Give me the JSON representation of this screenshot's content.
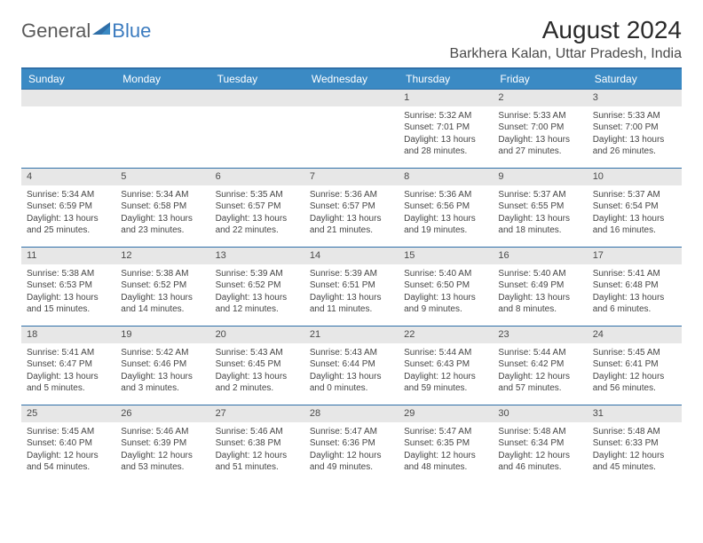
{
  "logo": {
    "text_grey": "General",
    "text_blue": "Blue"
  },
  "header": {
    "month_title": "August 2024",
    "location": "Barkhera Kalan, Uttar Pradesh, India"
  },
  "colors": {
    "header_bar": "#3b8ac4",
    "rule": "#2f6fa8",
    "daynum_bg": "#e7e7e7",
    "logo_blue": "#3b7bbf"
  },
  "day_names": [
    "Sunday",
    "Monday",
    "Tuesday",
    "Wednesday",
    "Thursday",
    "Friday",
    "Saturday"
  ],
  "weeks": [
    [
      {
        "n": "",
        "sr": "",
        "ss": "",
        "dl": ""
      },
      {
        "n": "",
        "sr": "",
        "ss": "",
        "dl": ""
      },
      {
        "n": "",
        "sr": "",
        "ss": "",
        "dl": ""
      },
      {
        "n": "",
        "sr": "",
        "ss": "",
        "dl": ""
      },
      {
        "n": "1",
        "sr": "Sunrise: 5:32 AM",
        "ss": "Sunset: 7:01 PM",
        "dl": "Daylight: 13 hours and 28 minutes."
      },
      {
        "n": "2",
        "sr": "Sunrise: 5:33 AM",
        "ss": "Sunset: 7:00 PM",
        "dl": "Daylight: 13 hours and 27 minutes."
      },
      {
        "n": "3",
        "sr": "Sunrise: 5:33 AM",
        "ss": "Sunset: 7:00 PM",
        "dl": "Daylight: 13 hours and 26 minutes."
      }
    ],
    [
      {
        "n": "4",
        "sr": "Sunrise: 5:34 AM",
        "ss": "Sunset: 6:59 PM",
        "dl": "Daylight: 13 hours and 25 minutes."
      },
      {
        "n": "5",
        "sr": "Sunrise: 5:34 AM",
        "ss": "Sunset: 6:58 PM",
        "dl": "Daylight: 13 hours and 23 minutes."
      },
      {
        "n": "6",
        "sr": "Sunrise: 5:35 AM",
        "ss": "Sunset: 6:57 PM",
        "dl": "Daylight: 13 hours and 22 minutes."
      },
      {
        "n": "7",
        "sr": "Sunrise: 5:36 AM",
        "ss": "Sunset: 6:57 PM",
        "dl": "Daylight: 13 hours and 21 minutes."
      },
      {
        "n": "8",
        "sr": "Sunrise: 5:36 AM",
        "ss": "Sunset: 6:56 PM",
        "dl": "Daylight: 13 hours and 19 minutes."
      },
      {
        "n": "9",
        "sr": "Sunrise: 5:37 AM",
        "ss": "Sunset: 6:55 PM",
        "dl": "Daylight: 13 hours and 18 minutes."
      },
      {
        "n": "10",
        "sr": "Sunrise: 5:37 AM",
        "ss": "Sunset: 6:54 PM",
        "dl": "Daylight: 13 hours and 16 minutes."
      }
    ],
    [
      {
        "n": "11",
        "sr": "Sunrise: 5:38 AM",
        "ss": "Sunset: 6:53 PM",
        "dl": "Daylight: 13 hours and 15 minutes."
      },
      {
        "n": "12",
        "sr": "Sunrise: 5:38 AM",
        "ss": "Sunset: 6:52 PM",
        "dl": "Daylight: 13 hours and 14 minutes."
      },
      {
        "n": "13",
        "sr": "Sunrise: 5:39 AM",
        "ss": "Sunset: 6:52 PM",
        "dl": "Daylight: 13 hours and 12 minutes."
      },
      {
        "n": "14",
        "sr": "Sunrise: 5:39 AM",
        "ss": "Sunset: 6:51 PM",
        "dl": "Daylight: 13 hours and 11 minutes."
      },
      {
        "n": "15",
        "sr": "Sunrise: 5:40 AM",
        "ss": "Sunset: 6:50 PM",
        "dl": "Daylight: 13 hours and 9 minutes."
      },
      {
        "n": "16",
        "sr": "Sunrise: 5:40 AM",
        "ss": "Sunset: 6:49 PM",
        "dl": "Daylight: 13 hours and 8 minutes."
      },
      {
        "n": "17",
        "sr": "Sunrise: 5:41 AM",
        "ss": "Sunset: 6:48 PM",
        "dl": "Daylight: 13 hours and 6 minutes."
      }
    ],
    [
      {
        "n": "18",
        "sr": "Sunrise: 5:41 AM",
        "ss": "Sunset: 6:47 PM",
        "dl": "Daylight: 13 hours and 5 minutes."
      },
      {
        "n": "19",
        "sr": "Sunrise: 5:42 AM",
        "ss": "Sunset: 6:46 PM",
        "dl": "Daylight: 13 hours and 3 minutes."
      },
      {
        "n": "20",
        "sr": "Sunrise: 5:43 AM",
        "ss": "Sunset: 6:45 PM",
        "dl": "Daylight: 13 hours and 2 minutes."
      },
      {
        "n": "21",
        "sr": "Sunrise: 5:43 AM",
        "ss": "Sunset: 6:44 PM",
        "dl": "Daylight: 13 hours and 0 minutes."
      },
      {
        "n": "22",
        "sr": "Sunrise: 5:44 AM",
        "ss": "Sunset: 6:43 PM",
        "dl": "Daylight: 12 hours and 59 minutes."
      },
      {
        "n": "23",
        "sr": "Sunrise: 5:44 AM",
        "ss": "Sunset: 6:42 PM",
        "dl": "Daylight: 12 hours and 57 minutes."
      },
      {
        "n": "24",
        "sr": "Sunrise: 5:45 AM",
        "ss": "Sunset: 6:41 PM",
        "dl": "Daylight: 12 hours and 56 minutes."
      }
    ],
    [
      {
        "n": "25",
        "sr": "Sunrise: 5:45 AM",
        "ss": "Sunset: 6:40 PM",
        "dl": "Daylight: 12 hours and 54 minutes."
      },
      {
        "n": "26",
        "sr": "Sunrise: 5:46 AM",
        "ss": "Sunset: 6:39 PM",
        "dl": "Daylight: 12 hours and 53 minutes."
      },
      {
        "n": "27",
        "sr": "Sunrise: 5:46 AM",
        "ss": "Sunset: 6:38 PM",
        "dl": "Daylight: 12 hours and 51 minutes."
      },
      {
        "n": "28",
        "sr": "Sunrise: 5:47 AM",
        "ss": "Sunset: 6:36 PM",
        "dl": "Daylight: 12 hours and 49 minutes."
      },
      {
        "n": "29",
        "sr": "Sunrise: 5:47 AM",
        "ss": "Sunset: 6:35 PM",
        "dl": "Daylight: 12 hours and 48 minutes."
      },
      {
        "n": "30",
        "sr": "Sunrise: 5:48 AM",
        "ss": "Sunset: 6:34 PM",
        "dl": "Daylight: 12 hours and 46 minutes."
      },
      {
        "n": "31",
        "sr": "Sunrise: 5:48 AM",
        "ss": "Sunset: 6:33 PM",
        "dl": "Daylight: 12 hours and 45 minutes."
      }
    ]
  ]
}
